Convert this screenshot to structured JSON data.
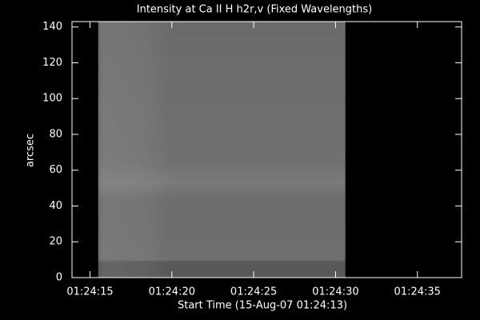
{
  "chart_data": {
    "type": "image",
    "title": "Intensity at Ca II H h2r,v (Fixed Wavelengths)",
    "x_label": "Start Time (15-Aug-07 01:24:13)",
    "y_label": "arcsec",
    "xlim": [
      13.9,
      37.7
    ],
    "ylim": [
      0,
      143
    ],
    "xticks": [
      {
        "value": 15,
        "label": "01:24:15"
      },
      {
        "value": 20,
        "label": "01:24:20"
      },
      {
        "value": 25,
        "label": "01:24:25"
      },
      {
        "value": 30,
        "label": "01:24:30"
      },
      {
        "value": 35,
        "label": "01:24:35"
      }
    ],
    "yticks": [
      0,
      20,
      40,
      60,
      80,
      100,
      120,
      140
    ],
    "image_x": [
      15.5,
      30.6
    ]
  }
}
